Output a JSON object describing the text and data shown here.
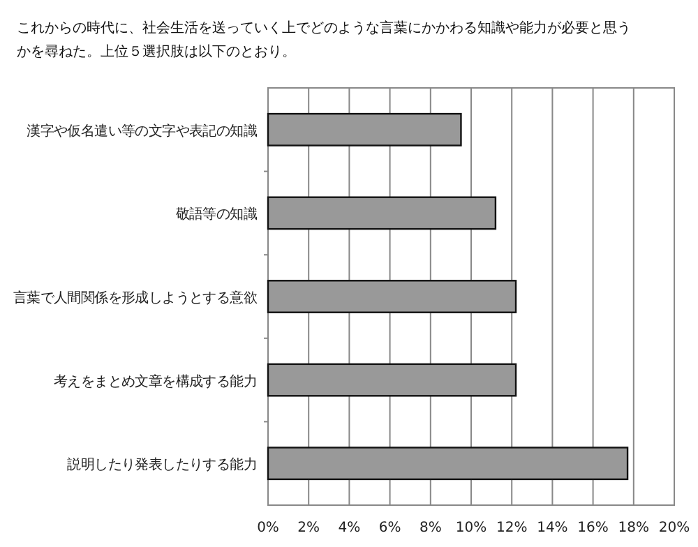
{
  "chart_data": {
    "type": "bar",
    "orientation": "horizontal",
    "title": "これからの時代に、社会生活を送っていく上でどのような言葉にかかわる知識や能力が必要と思うかを尋ねた。上位５選択肢は以下のとおり。",
    "categories": [
      "漢字や仮名遣い等の文字や表記の知識",
      "敬語等の知識",
      "言葉で人間関係を形成しようとする意欲",
      "考えをまとめ文章を構成する能力",
      "説明したり発表したりする能力"
    ],
    "values": [
      9.5,
      11.2,
      12.2,
      12.2,
      17.7
    ],
    "color": "#999999",
    "xlim": [
      0,
      20
    ],
    "xticks": [
      {
        "value": 0,
        "label": "0%"
      },
      {
        "value": 2,
        "label": "2%"
      },
      {
        "value": 4,
        "label": "4%"
      },
      {
        "value": 6,
        "label": "6%"
      },
      {
        "value": 8,
        "label": "8%"
      },
      {
        "value": 10,
        "label": "10%"
      },
      {
        "value": 12,
        "label": "12%"
      },
      {
        "value": 14,
        "label": "14%"
      },
      {
        "value": 16,
        "label": "16%"
      },
      {
        "value": 18,
        "label": "18%"
      },
      {
        "value": 20,
        "label": "20%"
      }
    ],
    "grid": "x"
  }
}
